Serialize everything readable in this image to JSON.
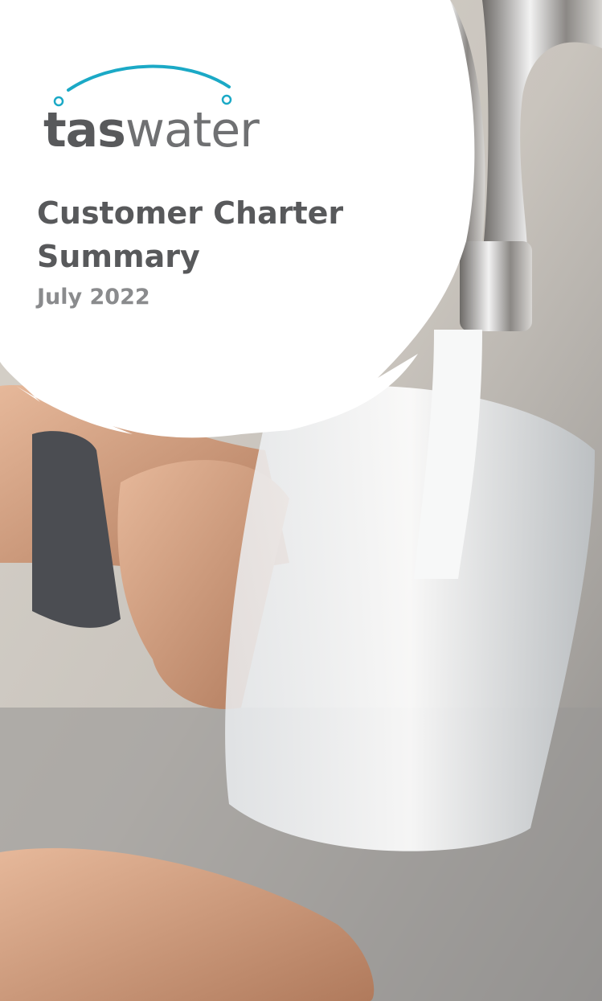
{
  "brand": {
    "part1": "tas",
    "part2": "water"
  },
  "title": {
    "line1": "Customer Charter",
    "line2": "Summary",
    "date": "July 2022"
  }
}
